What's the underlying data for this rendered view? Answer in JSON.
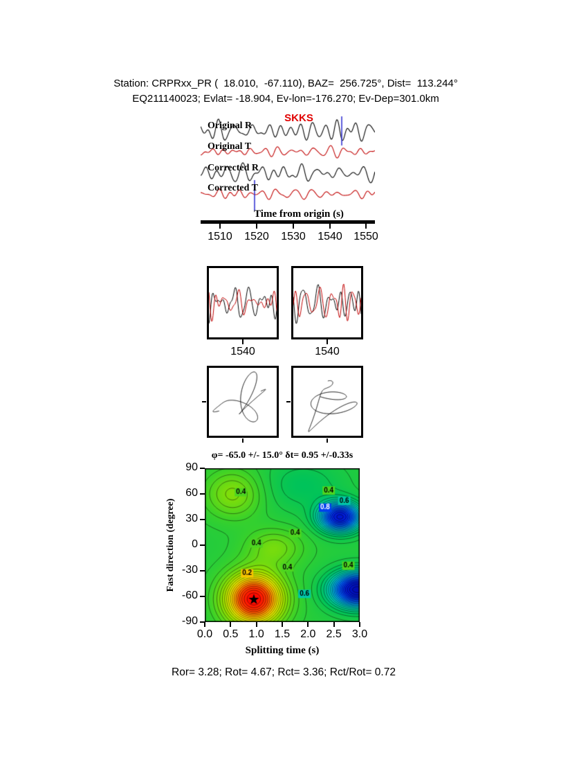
{
  "header": {
    "line1": "Station: CRPRxx_PR (  18.010,  -67.110), BAZ=  256.725°, Dist=  113.244°",
    "line2": "EQ211140023; Evlat= -18.904, Ev-lon=-176.270; Ev-Dep=301.0km"
  },
  "seismogram": {
    "phase_label": "SKKS",
    "trace_labels": [
      "Original R",
      "Original T",
      "Corrected R",
      "Corrected T"
    ],
    "xlabel": "Time from origin (s)",
    "xticks": [
      "1510",
      "1520",
      "1530",
      "1540",
      "1550"
    ]
  },
  "window_panels": {
    "left_tick": "1540",
    "right_tick": "1540"
  },
  "contour": {
    "title": "φ= -65.0 +/- 15.0° δt= 0.95 +/-0.33s",
    "ylabel": "Fast direction (degree)",
    "xlabel": "Splitting time (s)",
    "yticks": [
      "90",
      "60",
      "30",
      "0",
      "-30",
      "-60",
      "-90"
    ],
    "xticks": [
      "0.0",
      "0.5",
      "1.0",
      "1.5",
      "2.0",
      "2.5",
      "3.0"
    ]
  },
  "footer": {
    "stats": "Ror= 3.28; Rot= 4.67; Rct= 3.36; Rct/Rot= 0.72"
  },
  "chart_data": {
    "type": "composite",
    "description": "Shear-wave splitting measurement figure (SKKS phase): seismogram traces, analysis windows, particle motion, and misfit contour map",
    "station": {
      "code": "CRPRxx_PR",
      "lat": 18.01,
      "lon": -67.11,
      "baz_deg": 256.725,
      "dist_deg": 113.244
    },
    "event": {
      "id": "EQ211140023",
      "lat": -18.904,
      "lon": -176.27,
      "depth_km": 301.0
    },
    "phase": "SKKS",
    "result": {
      "phi_deg": -65.0,
      "phi_err_deg": 15.0,
      "dt_s": 0.95,
      "dt_err_s": 0.33
    },
    "stats": {
      "Ror": 3.28,
      "Rot": 4.67,
      "Rct": 3.36,
      "Rct_over_Rot": 0.72
    },
    "seismogram_axis": {
      "label": "Time from origin (s)",
      "ticks": [
        1510,
        1520,
        1530,
        1540,
        1550
      ]
    },
    "window_axis_ticks": [
      1540,
      1540
    ],
    "misfit_map": {
      "type": "contour",
      "xlabel": "Splitting time (s)",
      "ylabel": "Fast direction (degree)",
      "xlim": [
        0,
        3
      ],
      "ylim": [
        -90,
        90
      ],
      "xticks": [
        0.0,
        0.5,
        1.0,
        1.5,
        2.0,
        2.5,
        3.0
      ],
      "yticks": [
        90,
        60,
        30,
        0,
        -30,
        -60,
        -90
      ],
      "contour_levels_labeled": [
        0.2,
        0.4,
        0.6,
        0.8
      ],
      "minimum": {
        "splitting_time_s": 0.95,
        "fast_direction_deg": -65.0,
        "marker": "star"
      },
      "label_points": [
        {
          "v": 0.4,
          "x": 0.7,
          "y": 62
        },
        {
          "v": 0.4,
          "x": 2.4,
          "y": 64
        },
        {
          "v": 0.6,
          "x": 2.7,
          "y": 52
        },
        {
          "v": 0.8,
          "x": 2.33,
          "y": 44
        },
        {
          "v": 0.4,
          "x": 1.0,
          "y": 2
        },
        {
          "v": 0.4,
          "x": 1.75,
          "y": 14
        },
        {
          "v": 0.2,
          "x": 0.82,
          "y": -33
        },
        {
          "v": 0.4,
          "x": 1.6,
          "y": -26
        },
        {
          "v": 0.4,
          "x": 2.78,
          "y": -24
        },
        {
          "v": 0.6,
          "x": 1.93,
          "y": -57
        }
      ]
    },
    "colors": {
      "trace_r": "#000000",
      "trace_t": "#c00000",
      "phase_label": "#e00000",
      "pick_marker": "#2a2ad0"
    }
  }
}
